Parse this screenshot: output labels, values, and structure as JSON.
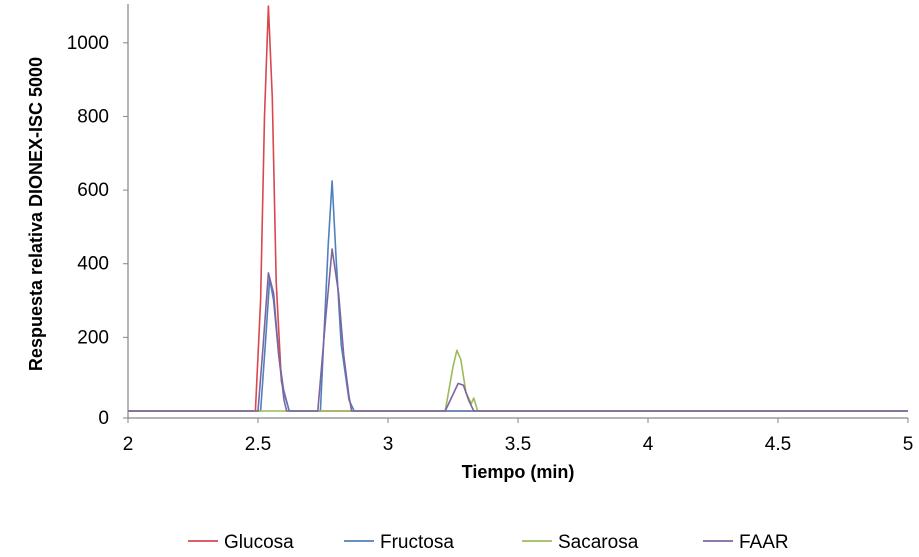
{
  "chart_data": {
    "type": "line",
    "xlabel": "Tiempo (min)",
    "ylabel": "Respuesta relativa DIONEX-ISC 5000",
    "xlim": [
      2,
      5
    ],
    "ylim": [
      0,
      1100
    ],
    "x_ticks": [
      "2",
      "2.5",
      "3",
      "3.5",
      "4",
      "4.5",
      "5"
    ],
    "y_ticks": [
      "0",
      "200",
      "400",
      "600",
      "800",
      "1000"
    ],
    "grid": false,
    "legend_position": "bottom",
    "series": [
      {
        "name": "Glucosa",
        "color": "#d9474f",
        "x": [
          2.0,
          2.49,
          2.51,
          2.525,
          2.54,
          2.555,
          2.57,
          2.59,
          2.62,
          5.0
        ],
        "y": [
          0,
          0,
          300,
          800,
          1100,
          850,
          350,
          80,
          0,
          0
        ]
      },
      {
        "name": "Fructosa",
        "color": "#4f81bd",
        "x": [
          2.0,
          2.51,
          2.53,
          2.545,
          2.56,
          2.58,
          2.6,
          2.62,
          2.74,
          2.77,
          2.785,
          2.8,
          2.82,
          2.85,
          2.87,
          5.0
        ],
        "y": [
          0,
          0,
          200,
          360,
          300,
          150,
          50,
          0,
          0,
          450,
          625,
          420,
          180,
          30,
          0,
          0
        ]
      },
      {
        "name": "Sacarosa",
        "color": "#9bbb59",
        "x": [
          2.0,
          3.22,
          3.25,
          3.265,
          3.28,
          3.3,
          3.32,
          3.33,
          3.345,
          5.0
        ],
        "y": [
          0,
          0,
          120,
          165,
          140,
          50,
          20,
          35,
          0,
          0
        ]
      },
      {
        "name": "FAAR",
        "color": "#8064a2",
        "x": [
          2.0,
          2.5,
          2.52,
          2.54,
          2.56,
          2.58,
          2.6,
          2.61,
          2.73,
          2.76,
          2.785,
          2.81,
          2.83,
          2.85,
          2.86,
          3.22,
          3.25,
          3.27,
          3.29,
          3.31,
          3.33,
          5.0
        ],
        "y": [
          0,
          0,
          180,
          375,
          320,
          150,
          30,
          0,
          0,
          250,
          440,
          320,
          150,
          40,
          0,
          0,
          45,
          75,
          70,
          30,
          0,
          0
        ]
      }
    ]
  }
}
